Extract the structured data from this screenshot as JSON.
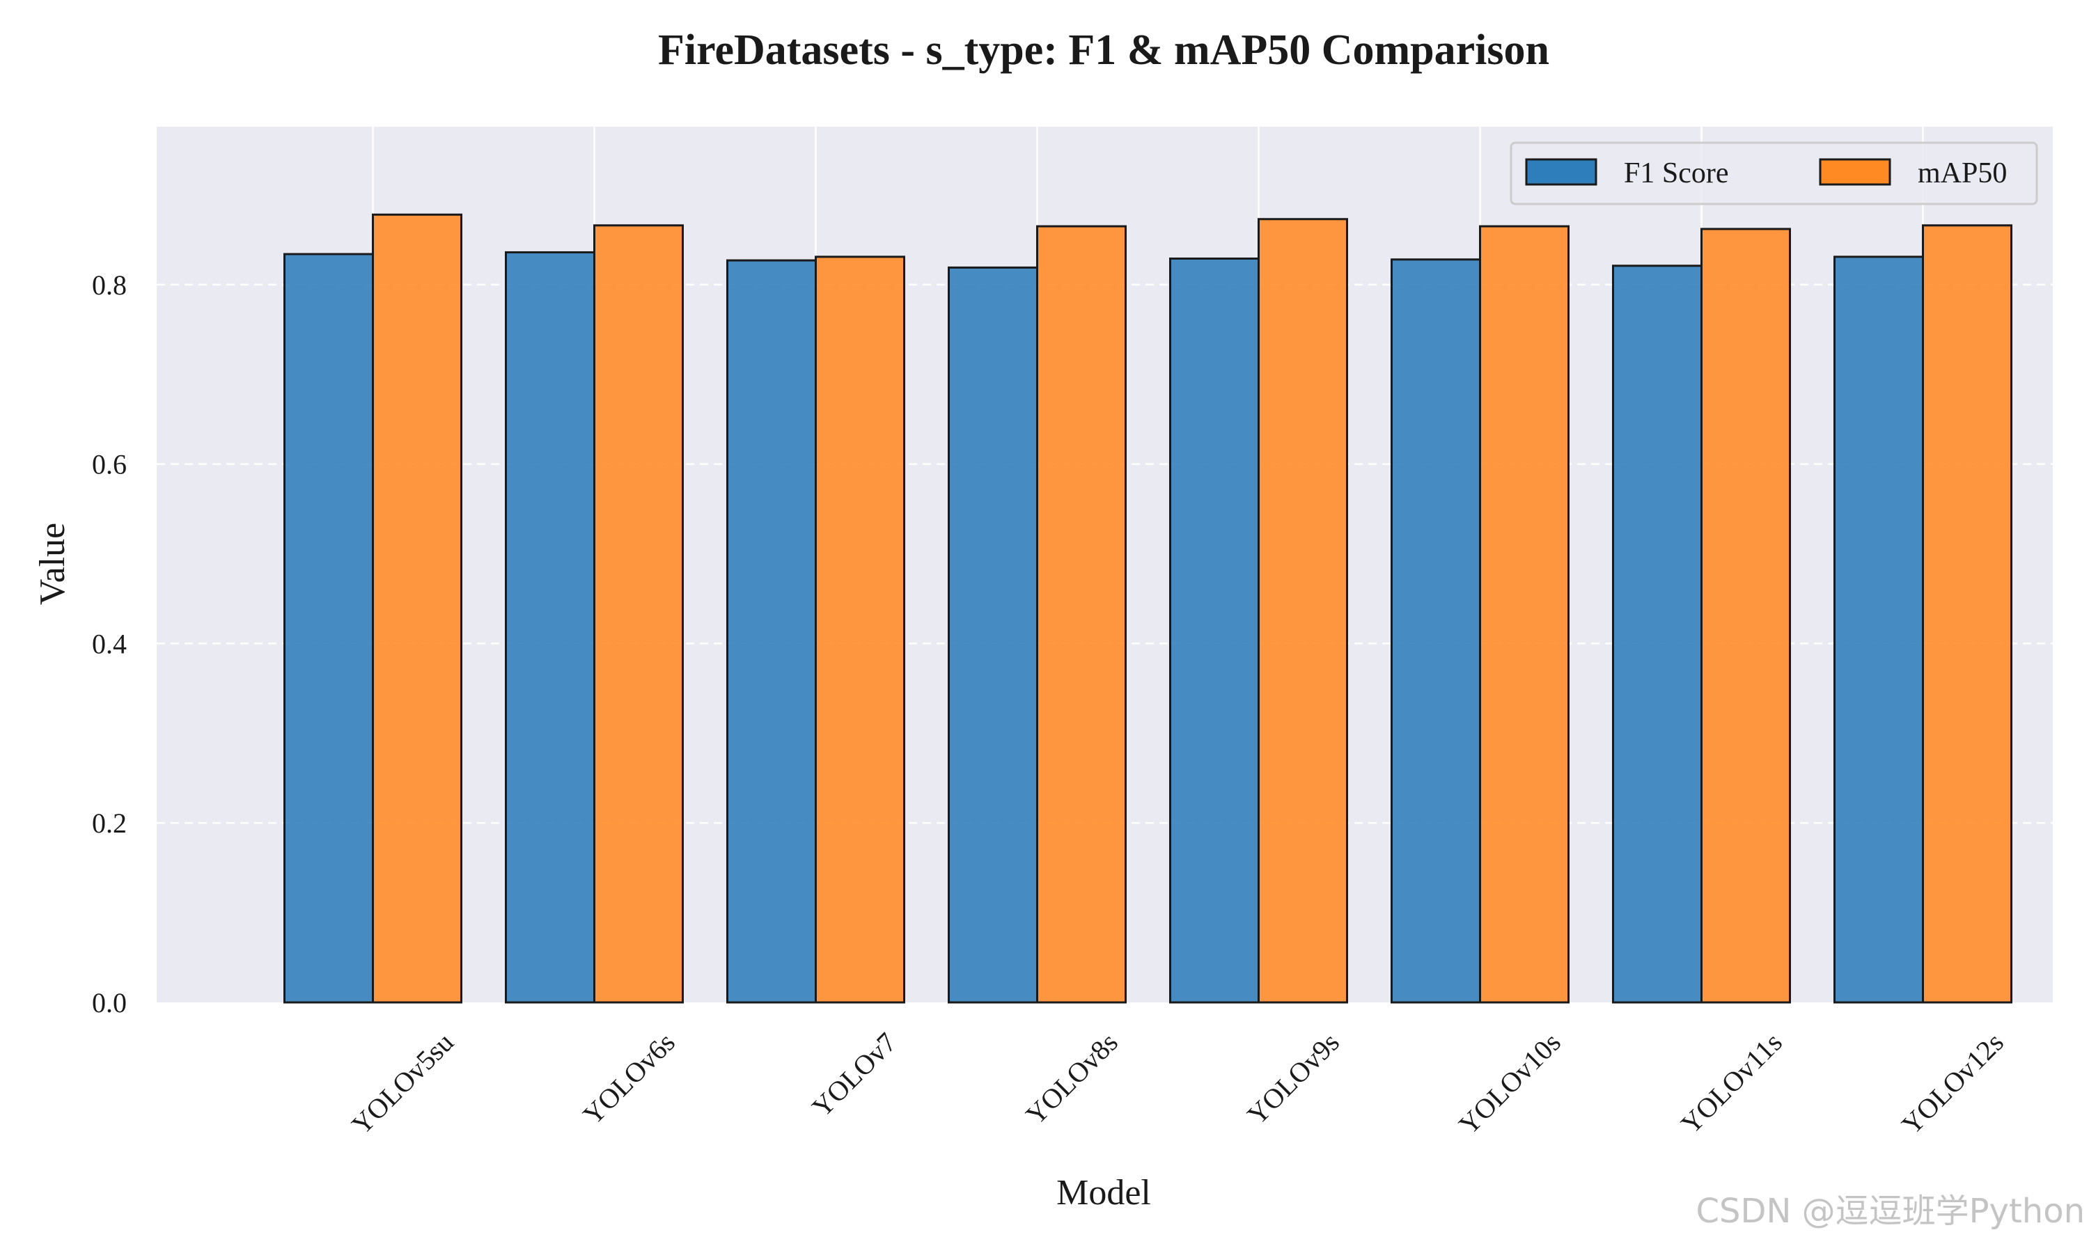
{
  "chart_data": {
    "type": "bar",
    "title": "FireDatasets - s_type: F1 & mAP50 Comparison",
    "xlabel": "Model",
    "ylabel": "Value",
    "categories": [
      "YOLOv5su",
      "YOLOv6s",
      "YOLOv7",
      "YOLOv8s",
      "YOLOv9s",
      "YOLOv10s",
      "YOLOv11s",
      "YOLOv12s"
    ],
    "series": [
      {
        "name": "F1 Score",
        "color": "#2f7ebc",
        "values": [
          0.834,
          0.836,
          0.827,
          0.819,
          0.829,
          0.828,
          0.821,
          0.831
        ]
      },
      {
        "name": "mAP50",
        "color": "#ff8a24",
        "values": [
          0.878,
          0.866,
          0.831,
          0.865,
          0.873,
          0.865,
          0.862,
          0.866
        ]
      }
    ],
    "ylim": [
      0,
      0.976
    ],
    "yticks": [
      "0.0",
      "0.2",
      "0.4",
      "0.6",
      "0.8"
    ],
    "ytick_values": [
      0.0,
      0.2,
      0.4,
      0.6,
      0.8
    ],
    "xtick_rotation_deg": 45,
    "grid": true,
    "legend_position": "top-right",
    "legend_columns": 2,
    "plot_background": "#eaeaf2",
    "edge_color": "#1a1a1a"
  },
  "watermark": "CSDN @逗逗班学Python"
}
